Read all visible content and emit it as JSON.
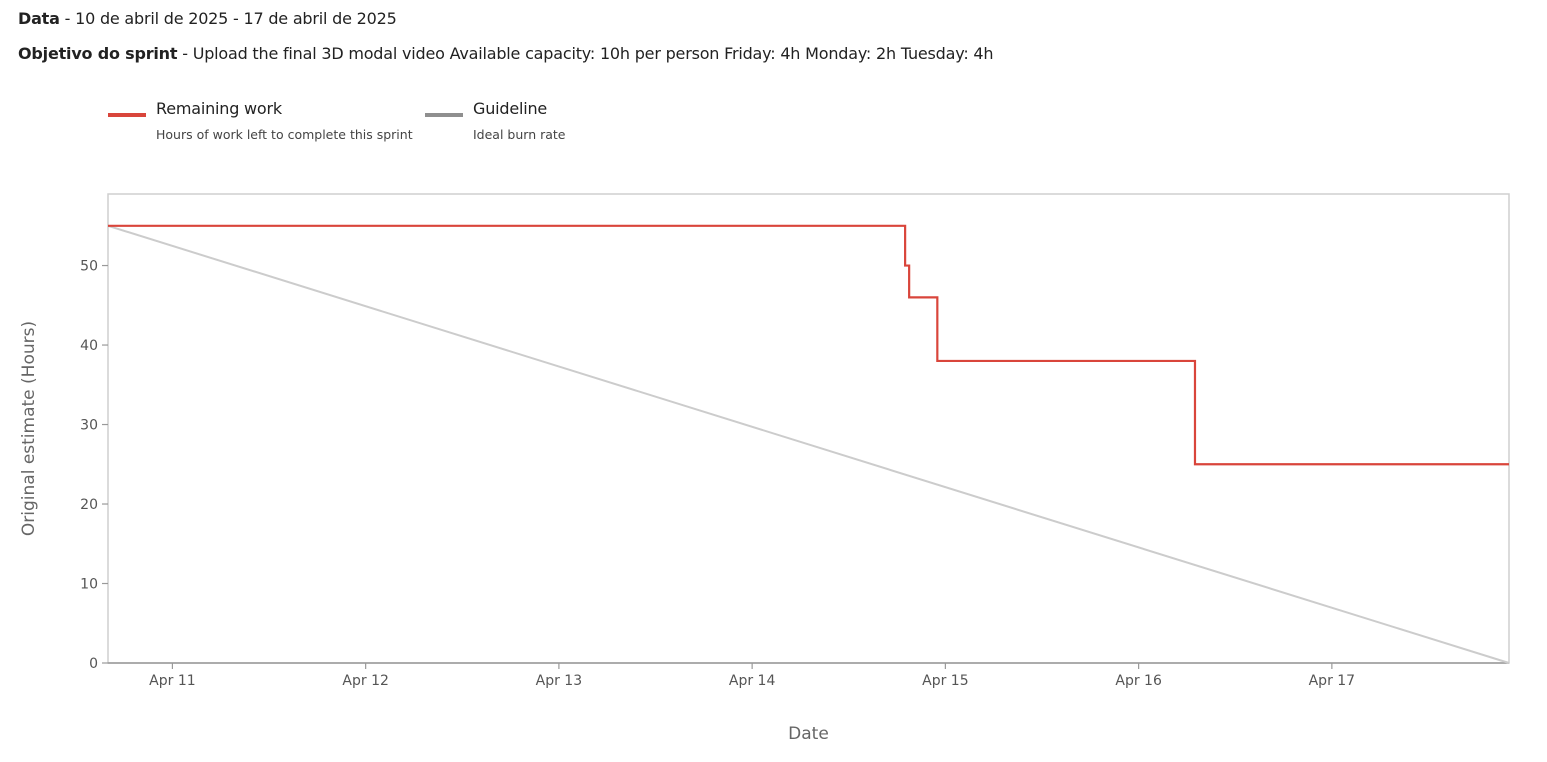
{
  "header": {
    "date_label": "Data",
    "date_range": "10 de abril de 2025 - 17 de abril de 2025",
    "goal_label": "Objetivo do sprint",
    "goal_text": "Upload the final 3D modal video Available capacity: 10h per person Friday: 4h Monday: 2h Tuesday: 4h",
    "separator": " - "
  },
  "legend": [
    {
      "title": "Remaining work",
      "description": "Hours of work left to complete this sprint",
      "color": "#d9453b"
    },
    {
      "title": "Guideline",
      "description": "Ideal burn rate",
      "color": "#8f8f8f"
    }
  ],
  "chart_data": {
    "type": "line",
    "xlabel": "Date",
    "ylabel": "Original estimate (Hours)",
    "x_tick_labels": [
      "Apr 11",
      "Apr 12",
      "Apr 13",
      "Apr 14",
      "Apr 15",
      "Apr 16",
      "Apr 17"
    ],
    "x_tick_dates": [
      "2025-04-11",
      "2025-04-12",
      "2025-04-13",
      "2025-04-14",
      "2025-04-15",
      "2025-04-16",
      "2025-04-17"
    ],
    "xlim": [
      "2025-04-10T16:00",
      "2025-04-17T22:00"
    ],
    "ylim": [
      0,
      59
    ],
    "y_ticks": [
      0,
      10,
      20,
      30,
      40,
      50
    ],
    "grid": false,
    "legend_position": "top-left",
    "series": [
      {
        "name": "Remaining work",
        "color": "#d9453b",
        "step": true,
        "points": [
          {
            "x": "2025-04-10T16:00",
            "y": 55
          },
          {
            "x": "2025-04-14T19:00",
            "y": 50
          },
          {
            "x": "2025-04-14T19:30",
            "y": 46
          },
          {
            "x": "2025-04-14T23:00",
            "y": 38
          },
          {
            "x": "2025-04-16T07:00",
            "y": 25
          },
          {
            "x": "2025-04-17T22:00",
            "y": 25
          }
        ]
      },
      {
        "name": "Guideline",
        "color": "#cccccc",
        "step": false,
        "points": [
          {
            "x": "2025-04-10T16:00",
            "y": 55
          },
          {
            "x": "2025-04-17T22:00",
            "y": 0
          }
        ]
      }
    ]
  }
}
